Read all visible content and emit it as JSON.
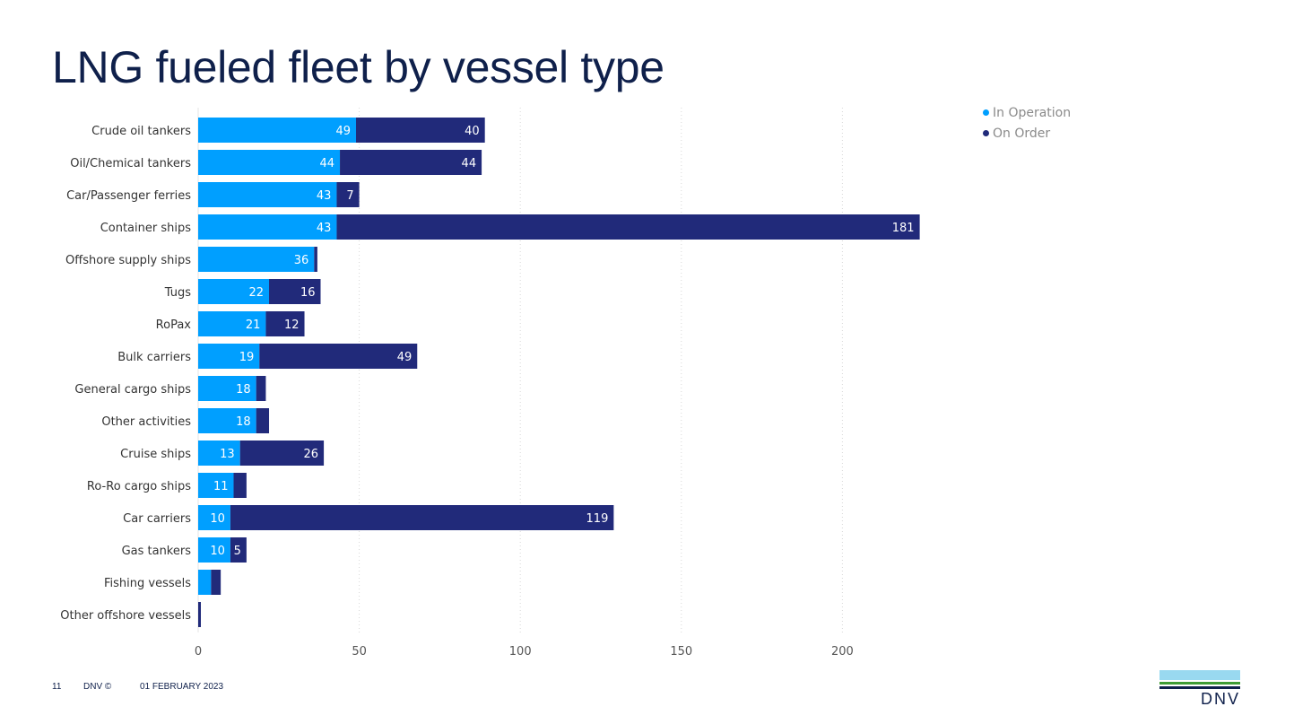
{
  "header": {
    "title": "LNG fueled fleet by vessel type"
  },
  "colors": {
    "in_operation": "#009fff",
    "on_order": "#212a7a",
    "title": "#0f204b"
  },
  "chart_data": {
    "type": "bar",
    "orientation": "horizontal",
    "stacked": true,
    "categories": [
      "Crude oil tankers",
      "Oil/Chemical tankers",
      "Car/Passenger ferries",
      "Container ships",
      "Offshore supply ships",
      "Tugs",
      "RoPax",
      "Bulk carriers",
      "General cargo ships",
      "Other activities",
      "Cruise ships",
      "Ro-Ro cargo ships",
      "Car carriers",
      "Gas tankers",
      "Fishing vessels",
      "Other offshore vessels"
    ],
    "series": [
      {
        "name": "In Operation",
        "values": [
          49,
          44,
          43,
          43,
          36,
          22,
          21,
          19,
          18,
          18,
          13,
          11,
          10,
          10,
          4,
          0
        ],
        "labels": [
          "49",
          "44",
          "43",
          "43",
          "36",
          "22",
          "21",
          "19",
          "18",
          "18",
          "13",
          "11",
          "10",
          "10",
          "",
          ""
        ]
      },
      {
        "name": "On Order",
        "values": [
          40,
          44,
          7,
          181,
          1,
          16,
          12,
          49,
          3,
          4,
          26,
          4,
          119,
          5,
          3,
          1
        ],
        "labels": [
          "40",
          "44",
          "7",
          "181",
          "",
          "16",
          "12",
          "49",
          "",
          "",
          "26",
          "",
          "119",
          "5",
          "",
          ""
        ]
      }
    ],
    "x_ticks": [
      "0",
      "50",
      "100",
      "150",
      "200"
    ],
    "xlim": [
      0,
      230
    ],
    "grid": true,
    "legend_position": "top-right"
  },
  "footer": {
    "page": "11",
    "copyright": "DNV ©",
    "date": "01 FEBRUARY 2023"
  },
  "logo": {
    "text": "DNV"
  }
}
